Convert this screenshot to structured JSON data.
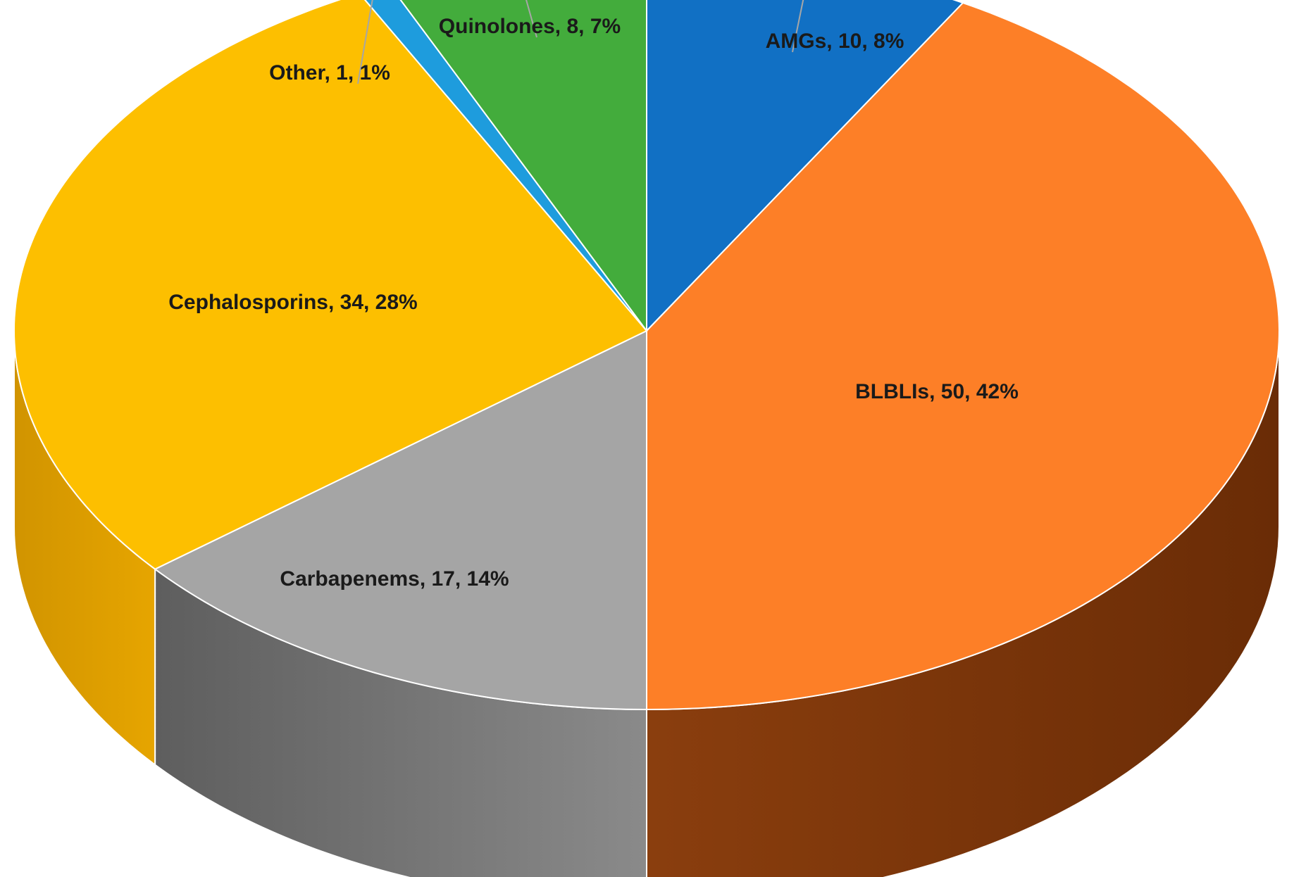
{
  "chart_data": {
    "type": "pie",
    "three_d": true,
    "start": "top, clockwise",
    "series": [
      {
        "label": "AMGs",
        "value": 10,
        "percent": "8%",
        "color": "#1170C4",
        "side": [
          "#0d4f8c",
          "#0d4f8c"
        ],
        "text": "AMGs, 10, 8%"
      },
      {
        "label": "BLBLIs",
        "value": 50,
        "percent": "42%",
        "color": "#FD7F27",
        "side": [
          "#8a3e0e",
          "#6a2c06"
        ],
        "text": "BLBLIs, 50, 42%"
      },
      {
        "label": "Carbapenems",
        "value": 17,
        "percent": "14%",
        "color": "#A5A5A5",
        "side": [
          "#5e5e5e",
          "#8a8a8a"
        ],
        "text": "Carbapenems, 17, 14%"
      },
      {
        "label": "Cephalosporins",
        "value": 34,
        "percent": "28%",
        "color": "#FDBF00",
        "side": [
          "#d19400",
          "#e6a500"
        ],
        "text": "Cephalosporins, 34, 28%"
      },
      {
        "label": "Other",
        "value": 1,
        "percent": "1%",
        "color": "#1E9CDD",
        "side": [
          "#126f9e",
          "#126f9e"
        ],
        "text": "Other, 1, 1%"
      },
      {
        "label": "Quinolones",
        "value": 8,
        "percent": "7%",
        "color": "#43AC3C",
        "side": [
          "#2d7a27",
          "#2d7a27"
        ],
        "text": "Quinolones, 8, 7%"
      }
    ]
  }
}
